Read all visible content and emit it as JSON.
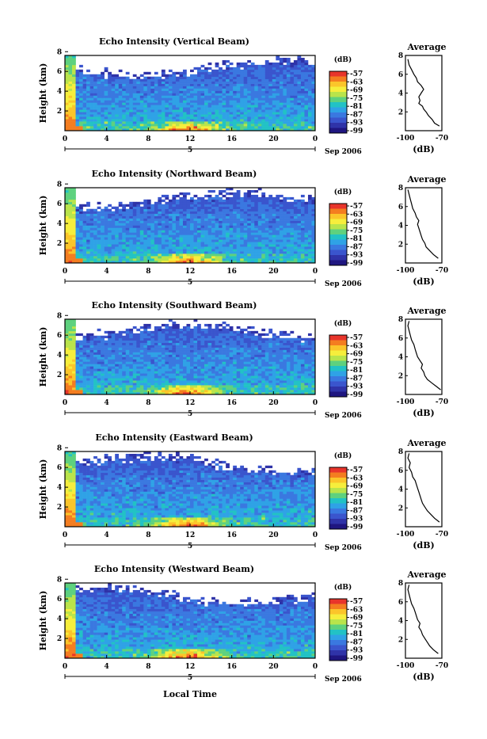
{
  "figure": {
    "common_xlabel": "Local Time",
    "date_label": "Sep 2006",
    "day_marker": "5"
  },
  "colorbar": {
    "unit": "(dB)",
    "ticks": [
      "-57",
      "-63",
      "-69",
      "-75",
      "-81",
      "-87",
      "-93",
      "-99"
    ],
    "colors": [
      "#e8352b",
      "#f47d20",
      "#fbc52a",
      "#f6ee3c",
      "#b9e44b",
      "#5ed17e",
      "#22c2c5",
      "#2fa2e6",
      "#3a78e0",
      "#3a55cd",
      "#2f33a8",
      "#1f1680"
    ]
  },
  "chart_data": [
    {
      "type": "heatmap",
      "title": "Echo Intensity (Vertical Beam)",
      "xlabel": "",
      "ylabel": "Height (km)",
      "xticks": [
        "0",
        "4",
        "8",
        "12",
        "16",
        "20",
        "0"
      ],
      "yticks": [
        "2",
        "4",
        "6",
        "8"
      ],
      "xlim": [
        0,
        24
      ],
      "ylim": [
        0,
        8
      ],
      "clim": [
        -99,
        -57
      ],
      "units": "dB"
    },
    {
      "type": "line",
      "title": "Average",
      "xlabel": "(dB)",
      "ylabel": "",
      "xticks": [
        "-100",
        "-70"
      ],
      "yticks": [
        "2",
        "4",
        "6",
        "8"
      ],
      "xlim": [
        -100,
        -70
      ],
      "ylim": [
        0,
        8
      ],
      "x": [
        -72,
        -76,
        -78,
        -81,
        -83,
        -85,
        -86,
        -89,
        -88,
        -89,
        -87,
        -85,
        -87,
        -90,
        -91,
        -93,
        -95,
        -97,
        -98
      ],
      "y": [
        0.5,
        0.8,
        1.2,
        1.6,
        2.0,
        2.3,
        2.6,
        2.9,
        3.2,
        3.6,
        4.0,
        4.4,
        4.8,
        5.2,
        5.6,
        6.0,
        6.5,
        7.0,
        7.6
      ]
    },
    {
      "type": "heatmap",
      "title": "Echo Intensity (Northward Beam)",
      "xlabel": "",
      "ylabel": "Height (km)",
      "xticks": [
        "0",
        "4",
        "8",
        "12",
        "16",
        "20",
        "0"
      ],
      "yticks": [
        "2",
        "4",
        "6",
        "8"
      ],
      "xlim": [
        0,
        24
      ],
      "ylim": [
        0,
        8
      ],
      "clim": [
        -99,
        -57
      ],
      "units": "dB"
    },
    {
      "type": "line",
      "title": "Average",
      "xlabel": "(dB)",
      "ylabel": "",
      "xticks": [
        "-100",
        "-70"
      ],
      "yticks": [
        "2",
        "4",
        "6",
        "8"
      ],
      "xlim": [
        -100,
        -70
      ],
      "ylim": [
        0,
        8
      ],
      "x": [
        -73,
        -77,
        -80,
        -83,
        -84,
        -86,
        -87,
        -88,
        -89,
        -90,
        -89,
        -91,
        -92,
        -94,
        -95,
        -96,
        -97,
        -98
      ],
      "y": [
        0.5,
        0.9,
        1.3,
        1.7,
        2.1,
        2.5,
        2.9,
        3.3,
        3.7,
        4.1,
        4.5,
        4.9,
        5.3,
        5.8,
        6.3,
        6.8,
        7.3,
        7.8
      ]
    },
    {
      "type": "heatmap",
      "title": "Echo Intensity (Southward Beam)",
      "xlabel": "",
      "ylabel": "Height (km)",
      "xticks": [
        "0",
        "4",
        "8",
        "12",
        "16",
        "20",
        "0"
      ],
      "yticks": [
        "2",
        "4",
        "6",
        "8"
      ],
      "xlim": [
        0,
        24
      ],
      "ylim": [
        0,
        8
      ],
      "clim": [
        -99,
        -57
      ],
      "units": "dB"
    },
    {
      "type": "line",
      "title": "Average",
      "xlabel": "(dB)",
      "ylabel": "",
      "xticks": [
        "-100",
        "-70"
      ],
      "yticks": [
        "2",
        "4",
        "6",
        "8"
      ],
      "xlim": [
        -100,
        -70
      ],
      "ylim": [
        0,
        8
      ],
      "x": [
        -71,
        -74,
        -78,
        -82,
        -84,
        -85,
        -87,
        -86,
        -88,
        -90,
        -91,
        -92,
        -93,
        -95,
        -96,
        -97,
        -98,
        -97
      ],
      "y": [
        0.5,
        0.8,
        1.2,
        1.6,
        2.0,
        2.4,
        2.8,
        3.2,
        3.6,
        4.0,
        4.4,
        4.8,
        5.3,
        5.8,
        6.3,
        6.8,
        7.3,
        7.8
      ]
    },
    {
      "type": "heatmap",
      "title": "Echo Intensity (Eastward Beam)",
      "xlabel": "",
      "ylabel": "Height (km)",
      "xticks": [
        "0",
        "4",
        "8",
        "12",
        "16",
        "20",
        "0"
      ],
      "yticks": [
        "2",
        "4",
        "6",
        "8"
      ],
      "xlim": [
        0,
        24
      ],
      "ylim": [
        0,
        8
      ],
      "clim": [
        -99,
        -57
      ],
      "units": "dB"
    },
    {
      "type": "line",
      "title": "Average",
      "xlabel": "(dB)",
      "ylabel": "",
      "xticks": [
        "-100",
        "-70"
      ],
      "yticks": [
        "2",
        "4",
        "6",
        "8"
      ],
      "xlim": [
        -100,
        -70
      ],
      "ylim": [
        0,
        8
      ],
      "x": [
        -72,
        -76,
        -79,
        -82,
        -84,
        -86,
        -87,
        -88,
        -89,
        -90,
        -91,
        -92,
        -94,
        -95,
        -97,
        -96,
        -98,
        -97
      ],
      "y": [
        0.5,
        0.9,
        1.3,
        1.7,
        2.1,
        2.5,
        2.9,
        3.3,
        3.7,
        4.1,
        4.5,
        4.9,
        5.3,
        5.8,
        6.3,
        6.8,
        7.3,
        7.8
      ]
    },
    {
      "type": "heatmap",
      "title": "Echo Intensity (Westward Beam)",
      "xlabel": "",
      "ylabel": "Height (km)",
      "xticks": [
        "0",
        "4",
        "8",
        "12",
        "16",
        "20",
        "0"
      ],
      "yticks": [
        "2",
        "4",
        "6",
        "8"
      ],
      "xlim": [
        0,
        24
      ],
      "ylim": [
        0,
        8
      ],
      "clim": [
        -99,
        -57
      ],
      "units": "dB"
    },
    {
      "type": "line",
      "title": "Average",
      "xlabel": "(dB)",
      "ylabel": "",
      "xticks": [
        "-100",
        "-70"
      ],
      "yticks": [
        "2",
        "4",
        "6",
        "8"
      ],
      "xlim": [
        -100,
        -70
      ],
      "ylim": [
        0,
        8
      ],
      "x": [
        -73,
        -77,
        -80,
        -82,
        -84,
        -86,
        -87,
        -89,
        -88,
        -90,
        -91,
        -92,
        -93,
        -95,
        -96,
        -97,
        -98,
        -97
      ],
      "y": [
        0.5,
        0.9,
        1.3,
        1.7,
        2.1,
        2.5,
        2.9,
        3.3,
        3.7,
        4.1,
        4.5,
        4.9,
        5.3,
        5.8,
        6.3,
        6.8,
        7.3,
        7.8
      ]
    }
  ]
}
